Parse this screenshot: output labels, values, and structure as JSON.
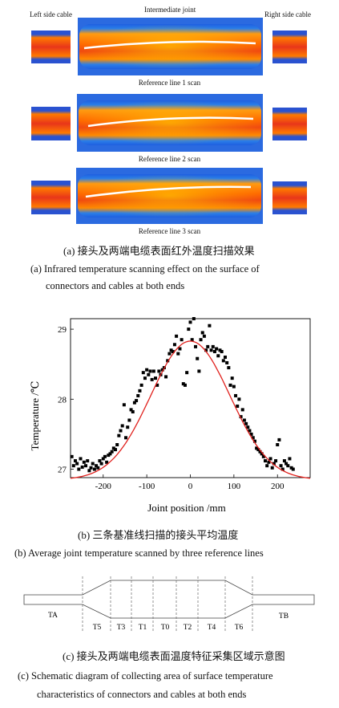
{
  "panel_a": {
    "left_label": "Left side cable",
    "center_label": "Intermediate joint",
    "right_label": "Right side cable",
    "scans": [
      {
        "label": "Reference line 1 scan"
      },
      {
        "label": "Reference line 2 scan"
      },
      {
        "label": "Reference line 3 scan"
      }
    ],
    "caption_cn": "(a)  接头及两端电缆表面红外温度扫描效果",
    "caption_en_1": "(a) Infrared temperature scanning effect on the surface of",
    "caption_en_2": "connectors and cables at both ends"
  },
  "panel_b": {
    "caption_cn": "(b)  三条基准线扫描的接头平均温度",
    "caption_en": "(b) Average joint temperature scanned by three reference lines"
  },
  "panel_c": {
    "labels": [
      "TA",
      "T5",
      "T3",
      "T1",
      "T0",
      "T2",
      "T4",
      "T6",
      "TB"
    ],
    "caption_cn": "(c)  接头及两端电缆表面温度特征采集区域示意图",
    "caption_en_1": "(c) Schematic diagram of collecting area of surface temperature",
    "caption_en_2": "characteristics of connectors and cables at both ends"
  },
  "chart_data": {
    "type": "scatter",
    "xlabel": "Joint position /mm",
    "ylabel": "Temperature /℃",
    "xlim": [
      -275,
      275
    ],
    "ylim": [
      26.88,
      29.15
    ],
    "xticks": [
      -200,
      -100,
      0,
      100,
      200
    ],
    "yticks": [
      27,
      28,
      29
    ],
    "colors": {
      "points": "#000000",
      "fit": "#e0201c"
    },
    "fit": {
      "type": "gaussian",
      "y0": 26.85,
      "A": 1.98,
      "xc": 0,
      "w": 182
    },
    "series": [
      {
        "values": [
          [
            -272,
            27.18
          ],
          [
            -268,
            27.05
          ],
          [
            -264,
            27.12
          ],
          [
            -260,
            27.08
          ],
          [
            -256,
            27.0
          ],
          [
            -252,
            27.15
          ],
          [
            -248,
            27.03
          ],
          [
            -244,
            27.1
          ],
          [
            -240,
            27.05
          ],
          [
            -236,
            27.12
          ],
          [
            -232,
            26.98
          ],
          [
            -228,
            27.02
          ],
          [
            -224,
            27.08
          ],
          [
            -220,
            27.0
          ],
          [
            -216,
            27.05
          ],
          [
            -212,
            27.02
          ],
          [
            -208,
            27.12
          ],
          [
            -204,
            27.08
          ],
          [
            -200,
            27.15
          ],
          [
            -196,
            27.18
          ],
          [
            -192,
            27.1
          ],
          [
            -188,
            27.2
          ],
          [
            -184,
            27.22
          ],
          [
            -180,
            27.25
          ],
          [
            -176,
            27.3
          ],
          [
            -172,
            27.28
          ],
          [
            -168,
            27.35
          ],
          [
            -164,
            27.48
          ],
          [
            -160,
            27.55
          ],
          [
            -156,
            27.62
          ],
          [
            -152,
            27.92
          ],
          [
            -148,
            27.45
          ],
          [
            -144,
            27.6
          ],
          [
            -140,
            27.7
          ],
          [
            -136,
            27.85
          ],
          [
            -132,
            27.82
          ],
          [
            -128,
            27.95
          ],
          [
            -124,
            27.98
          ],
          [
            -120,
            28.05
          ],
          [
            -116,
            28.12
          ],
          [
            -112,
            28.2
          ],
          [
            -108,
            28.38
          ],
          [
            -104,
            28.3
          ],
          [
            -100,
            28.42
          ],
          [
            -96,
            28.35
          ],
          [
            -92,
            28.4
          ],
          [
            -88,
            28.28
          ],
          [
            -84,
            28.4
          ],
          [
            -80,
            28.3
          ],
          [
            -76,
            28.2
          ],
          [
            -72,
            28.4
          ],
          [
            -68,
            28.35
          ],
          [
            -64,
            28.42
          ],
          [
            -60,
            28.45
          ],
          [
            -56,
            28.32
          ],
          [
            -52,
            28.55
          ],
          [
            -48,
            28.65
          ],
          [
            -44,
            28.7
          ],
          [
            -40,
            28.68
          ],
          [
            -36,
            28.78
          ],
          [
            -32,
            28.9
          ],
          [
            -28,
            28.65
          ],
          [
            -24,
            28.72
          ],
          [
            -20,
            28.85
          ],
          [
            -16,
            28.22
          ],
          [
            -12,
            28.2
          ],
          [
            -8,
            28.38
          ],
          [
            -4,
            29.0
          ],
          [
            0,
            29.1
          ],
          [
            4,
            28.85
          ],
          [
            8,
            29.15
          ],
          [
            12,
            28.75
          ],
          [
            16,
            28.58
          ],
          [
            20,
            28.4
          ],
          [
            24,
            28.85
          ],
          [
            28,
            28.95
          ],
          [
            32,
            28.9
          ],
          [
            36,
            28.7
          ],
          [
            40,
            28.75
          ],
          [
            44,
            29.05
          ],
          [
            48,
            28.7
          ],
          [
            52,
            28.75
          ],
          [
            56,
            28.68
          ],
          [
            60,
            28.72
          ],
          [
            64,
            28.62
          ],
          [
            68,
            28.7
          ],
          [
            72,
            28.68
          ],
          [
            76,
            28.55
          ],
          [
            80,
            28.6
          ],
          [
            84,
            28.52
          ],
          [
            88,
            28.45
          ],
          [
            92,
            28.2
          ],
          [
            96,
            28.3
          ],
          [
            100,
            28.18
          ],
          [
            104,
            28.05
          ],
          [
            108,
            27.9
          ],
          [
            112,
            28.0
          ],
          [
            116,
            27.75
          ],
          [
            120,
            27.85
          ],
          [
            124,
            27.7
          ],
          [
            128,
            27.65
          ],
          [
            132,
            27.6
          ],
          [
            136,
            27.55
          ],
          [
            140,
            27.5
          ],
          [
            144,
            27.45
          ],
          [
            148,
            27.4
          ],
          [
            152,
            27.3
          ],
          [
            156,
            27.28
          ],
          [
            160,
            27.25
          ],
          [
            164,
            27.22
          ],
          [
            168,
            27.18
          ],
          [
            172,
            27.12
          ],
          [
            176,
            27.05
          ],
          [
            180,
            27.1
          ],
          [
            184,
            27.15
          ],
          [
            188,
            27.02
          ],
          [
            192,
            27.08
          ],
          [
            196,
            27.12
          ],
          [
            200,
            27.35
          ],
          [
            204,
            27.42
          ],
          [
            208,
            27.05
          ],
          [
            212,
            27.0
          ],
          [
            216,
            27.12
          ],
          [
            220,
            27.08
          ],
          [
            224,
            27.05
          ],
          [
            228,
            27.15
          ],
          [
            232,
            27.02
          ],
          [
            236,
            27.0
          ]
        ]
      }
    ]
  }
}
